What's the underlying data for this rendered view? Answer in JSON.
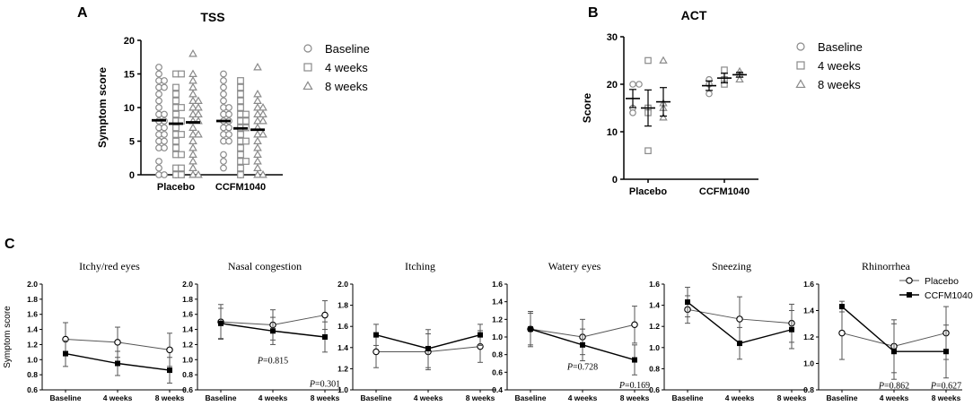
{
  "chart_data": [
    {
      "panel": "A",
      "type": "scatter",
      "title": "TSS",
      "ylabel": "Symptom score",
      "ylim": [
        0,
        20
      ],
      "yticks": [
        "0",
        "5",
        "10",
        "15",
        "20"
      ],
      "groups": [
        "Placebo",
        "CCFM1040"
      ],
      "legend": [
        "Baseline",
        "4 weeks",
        "8 weeks"
      ],
      "series": [
        {
          "name": "Baseline",
          "group": "Placebo",
          "mean": 8.1,
          "values": [
            16,
            15,
            14,
            14,
            13,
            13,
            12,
            11,
            10,
            9,
            9,
            8,
            8,
            7,
            7,
            6,
            6,
            5,
            5,
            4,
            4,
            2,
            1,
            0,
            0
          ]
        },
        {
          "name": "4 weeks",
          "group": "Placebo",
          "mean": 7.6,
          "values": [
            15,
            15,
            13,
            12,
            11,
            10,
            10,
            9,
            8,
            8,
            7,
            6,
            6,
            5,
            4,
            3,
            3,
            1,
            1,
            0,
            0
          ]
        },
        {
          "name": "8 weeks",
          "group": "Placebo",
          "mean": 7.8,
          "values": [
            18,
            15,
            14,
            13,
            12,
            11,
            11,
            10,
            10,
            9,
            9,
            8,
            8,
            7,
            6,
            6,
            5,
            4,
            3,
            2,
            1,
            0,
            0
          ]
        },
        {
          "name": "Baseline",
          "group": "CCFM1040",
          "mean": 8.0,
          "values": [
            15,
            14,
            13,
            12,
            11,
            10,
            10,
            9,
            9,
            8,
            8,
            7,
            7,
            6,
            6,
            5,
            5,
            3,
            2,
            1
          ]
        },
        {
          "name": "4 weeks",
          "group": "CCFM1040",
          "mean": 6.9,
          "values": [
            14,
            13,
            12,
            11,
            10,
            9,
            9,
            8,
            8,
            7,
            7,
            6,
            5,
            5,
            4,
            3,
            2,
            2,
            1,
            0
          ]
        },
        {
          "name": "8 weeks",
          "group": "CCFM1040",
          "mean": 6.7,
          "values": [
            16,
            12,
            11,
            10,
            10,
            9,
            9,
            8,
            8,
            7,
            6,
            6,
            5,
            4,
            3,
            2,
            1,
            0,
            0
          ]
        }
      ]
    },
    {
      "panel": "B",
      "type": "scatter",
      "title": "ACT",
      "ylabel": "Score",
      "ylim": [
        0,
        30
      ],
      "yticks": [
        "0",
        "10",
        "20",
        "30"
      ],
      "groups": [
        "Placebo",
        "CCFM1040"
      ],
      "legend": [
        "Baseline",
        "4 weeks",
        "8 weeks"
      ],
      "series": [
        {
          "name": "Baseline",
          "group": "Placebo",
          "mean": 17,
          "sem": 1.9,
          "values": [
            20,
            20,
            15,
            14
          ]
        },
        {
          "name": "4 weeks",
          "group": "Placebo",
          "mean": 15,
          "sem": 3.8,
          "values": [
            25,
            15,
            14,
            6
          ]
        },
        {
          "name": "8 weeks",
          "group": "Placebo",
          "mean": 16.3,
          "sem": 3.0,
          "values": [
            25,
            16,
            15,
            13
          ]
        },
        {
          "name": "Baseline",
          "group": "CCFM1040",
          "mean": 19.7,
          "sem": 1.0,
          "values": [
            21,
            20,
            18
          ]
        },
        {
          "name": "4 weeks",
          "group": "CCFM1040",
          "mean": 21.3,
          "sem": 1.0,
          "values": [
            23,
            21,
            20
          ]
        },
        {
          "name": "8 weeks",
          "group": "CCFM1040",
          "mean": 22,
          "sem": 0.5,
          "values": [
            22.7,
            22,
            21
          ]
        }
      ]
    },
    {
      "panel": "C",
      "type": "line",
      "ylabel": "Symptom score",
      "x": [
        "Baseline",
        "4 weeks",
        "8 weeks"
      ],
      "legend": [
        "Placebo",
        "CCFM1040"
      ],
      "subplots": [
        {
          "title": "Itchy/red eyes",
          "ylim": [
            0.6,
            2.0
          ],
          "ystep": 0.2,
          "yticks": [
            "0.6",
            "0.8",
            "1.0",
            "1.2",
            "1.4",
            "1.6",
            "1.8",
            "2.0"
          ],
          "series": [
            {
              "name": "Placebo",
              "values": [
                1.27,
                1.23,
                1.13
              ],
              "err": [
                0.22,
                0.2,
                0.22
              ]
            },
            {
              "name": "CCFM1040",
              "values": [
                1.08,
                0.95,
                0.86
              ],
              "err": [
                0.17,
                0.16,
                0.17
              ]
            }
          ],
          "annotations": []
        },
        {
          "title": "Nasal congestion",
          "ylim": [
            0.6,
            2.0
          ],
          "ystep": 0.2,
          "yticks": [
            "0.6",
            "0.8",
            "1.0",
            "1.2",
            "1.4",
            "1.6",
            "1.8",
            "2.0"
          ],
          "series": [
            {
              "name": "Placebo",
              "values": [
                1.5,
                1.46,
                1.59
              ],
              "err": [
                0.23,
                0.2,
                0.19
              ]
            },
            {
              "name": "CCFM1040",
              "values": [
                1.48,
                1.38,
                1.3
              ],
              "err": [
                0.2,
                0.18,
                0.2
              ]
            }
          ],
          "annotations": [
            {
              "label": "P",
              "value": "=0.815",
              "x": "4 weeks",
              "y": 0.95
            },
            {
              "label": "P",
              "value": "=0.301",
              "x": "8 weeks",
              "y": 0.64
            }
          ]
        },
        {
          "title": "Itching",
          "ylim": [
            1.0,
            2.0
          ],
          "ystep": 0.2,
          "yticks": [
            "1.0",
            "1.2",
            "1.4",
            "1.6",
            "1.8",
            "2.0"
          ],
          "series": [
            {
              "name": "Placebo",
              "values": [
                1.36,
                1.36,
                1.41
              ],
              "err": [
                0.15,
                0.17,
                0.15
              ]
            },
            {
              "name": "CCFM1040",
              "values": [
                1.52,
                1.39,
                1.52
              ],
              "err": [
                0.1,
                0.18,
                0.1
              ]
            }
          ],
          "annotations": []
        },
        {
          "title": "Watery eyes",
          "ylim": [
            0.4,
            1.6
          ],
          "ystep": 0.2,
          "yticks": [
            "0.4",
            "0.6",
            "0.8",
            "1.0",
            "1.2",
            "1.4",
            "1.6"
          ],
          "series": [
            {
              "name": "Placebo",
              "values": [
                1.09,
                1.0,
                1.14
              ],
              "err": [
                0.2,
                0.2,
                0.21
              ]
            },
            {
              "name": "CCFM1040",
              "values": [
                1.09,
                0.91,
                0.74
              ],
              "err": [
                0.18,
                0.18,
                0.17
              ]
            }
          ],
          "annotations": [
            {
              "label": "P",
              "value": "=0.728",
              "x": "4 weeks",
              "y": 0.63
            },
            {
              "label": "P",
              "value": "=0.169",
              "x": "8 weeks",
              "y": 0.42
            }
          ]
        },
        {
          "title": "Sneezing",
          "ylim": [
            0.6,
            1.6
          ],
          "ystep": 0.2,
          "yticks": [
            "0.6",
            "0.8",
            "1.0",
            "1.2",
            "1.4",
            "1.6"
          ],
          "series": [
            {
              "name": "Placebo",
              "values": [
                1.36,
                1.27,
                1.23
              ],
              "err": [
                0.13,
                0.21,
                0.18
              ]
            },
            {
              "name": "CCFM1040",
              "values": [
                1.43,
                1.04,
                1.17
              ],
              "err": [
                0.14,
                0.15,
                0.18
              ]
            }
          ],
          "annotations": []
        },
        {
          "title": "Rhinorrhea",
          "ylim": [
            0.8,
            1.6
          ],
          "ystep": 0.2,
          "yticks": [
            "0.8",
            "1.0",
            "1.2",
            "1.4",
            "1.6"
          ],
          "series": [
            {
              "name": "Placebo",
              "values": [
                1.23,
                1.13,
                1.23
              ],
              "err": [
                0.2,
                0.2,
                0.2
              ]
            },
            {
              "name": "CCFM1040",
              "values": [
                1.43,
                1.09,
                1.09
              ],
              "err": [
                0.04,
                0.21,
                0.2
              ]
            }
          ],
          "annotations": [
            {
              "label": "P",
              "value": "=0.862",
              "x": "4 weeks",
              "y": 0.81
            },
            {
              "label": "P",
              "value": "=0.627",
              "x": "8 weeks",
              "y": 0.81
            }
          ]
        }
      ]
    }
  ],
  "panel_labels": [
    "A",
    "B",
    "C"
  ],
  "colors": {
    "gray_marker": "#8a8a8a",
    "black": "#000000",
    "placebo_line": "#555555"
  }
}
